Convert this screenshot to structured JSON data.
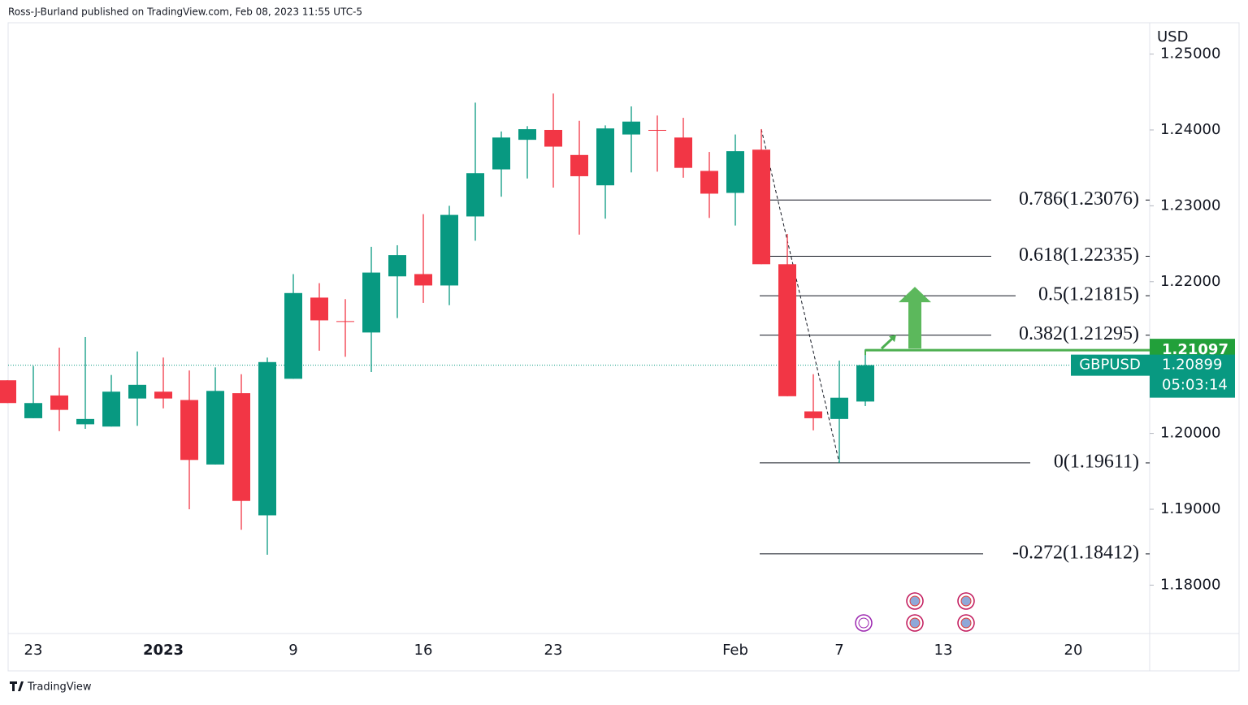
{
  "header": "Ross-J-Burland published on TradingView.com, Feb 08, 2023 11:55 UTC-5",
  "footer": "TradingView",
  "chart_data": {
    "type": "candlestick",
    "symbol": "GBPUSD",
    "currency": "USD",
    "categories": [
      null,
      "23",
      null,
      null,
      null,
      null,
      "2023",
      null,
      null,
      null,
      null,
      "9",
      null,
      null,
      null,
      null,
      "16",
      null,
      null,
      null,
      null,
      "23",
      null,
      null,
      null,
      null,
      null,
      null,
      "Feb",
      null,
      null,
      null,
      "7",
      null,
      null,
      null,
      "13",
      null,
      null,
      null,
      null,
      "20"
    ],
    "open": [
      1.207,
      1.202,
      1.205,
      1.2012,
      1.2009,
      1.2046,
      1.2055,
      1.2044,
      1.1959,
      1.2053,
      1.1892,
      1.2072,
      1.2179,
      1.2148,
      1.2133,
      1.2207,
      1.221,
      1.2195,
      1.2286,
      1.2348,
      1.2387,
      1.24,
      1.2367,
      1.2327,
      1.2394,
      1.24,
      1.239,
      1.2346,
      1.2317,
      1.2374,
      1.2223,
      1.2029,
      1.2019,
      1.2042,
      null,
      null,
      null,
      null,
      null,
      null,
      null,
      null
    ],
    "high": [
      1.207,
      1.2089,
      1.2113,
      1.2127,
      1.2077,
      1.2108,
      1.21,
      1.2083,
      1.2087,
      1.2078,
      1.21,
      1.221,
      1.2198,
      1.2177,
      1.2246,
      1.2248,
      1.2289,
      1.23,
      1.2436,
      1.2398,
      1.2405,
      1.2448,
      1.2412,
      1.2406,
      1.2431,
      1.2419,
      1.2416,
      1.2371,
      1.2394,
      1.2401,
      1.2263,
      1.2078,
      1.2096,
      1.2111,
      null,
      null,
      null,
      null,
      null,
      null,
      null,
      null
    ],
    "low": [
      1.204,
      1.202,
      1.2003,
      1.2006,
      1.2009,
      1.201,
      1.2033,
      1.19,
      1.1959,
      1.1873,
      1.184,
      1.2072,
      1.2109,
      1.2101,
      1.2081,
      1.2152,
      1.2172,
      1.2169,
      1.2254,
      1.2312,
      1.2336,
      1.2324,
      1.2262,
      1.2283,
      1.2344,
      1.2345,
      1.2337,
      1.2284,
      1.2274,
      1.2223,
      1.2049,
      1.2004,
      1.19611,
      1.2036,
      null,
      null,
      null,
      null,
      null,
      null,
      null,
      null
    ],
    "close": [
      1.204,
      1.204,
      1.2031,
      1.2019,
      1.2055,
      1.2064,
      1.2046,
      1.1965,
      1.2056,
      1.1911,
      1.2094,
      1.2185,
      1.2149,
      1.2147,
      1.2212,
      1.2235,
      1.2195,
      1.2288,
      1.2343,
      1.239,
      1.2401,
      1.2378,
      1.2339,
      1.2402,
      1.2411,
      1.2399,
      1.235,
      1.2316,
      1.2372,
      1.2223,
      1.2049,
      1.202,
      1.2047,
      1.20899,
      null,
      null,
      null,
      null,
      null,
      null,
      null,
      null
    ],
    "up_color": "#089981",
    "down_color": "#f23645",
    "ylim": [
      1.17362,
      1.25413
    ],
    "yticks": [
      {
        "value": 1.18,
        "label": "1.18000"
      },
      {
        "value": 1.19,
        "label": "1.19000"
      },
      {
        "value": 1.2,
        "label": "1.20000"
      },
      {
        "value": 1.22,
        "label": "1.22000"
      },
      {
        "value": 1.23,
        "label": "1.23000"
      },
      {
        "value": 1.24,
        "label": "1.24000"
      },
      {
        "value": 1.25,
        "label": "1.25000"
      }
    ],
    "fib_levels": [
      {
        "level": 0.786,
        "price": 1.23076,
        "label": "0.786(1.23076)"
      },
      {
        "level": 0.618,
        "price": 1.22335,
        "label": "0.618(1.22335)"
      },
      {
        "level": 0.5,
        "price": 1.21815,
        "label": "0.5(1.21815)"
      },
      {
        "level": 0.382,
        "price": 1.21295,
        "label": "0.382(1.21295)"
      },
      {
        "level": 0,
        "price": 1.19611,
        "label": "0(1.19611)"
      },
      {
        "level": -0.272,
        "price": 1.18412,
        "label": "-0.272(1.18412)"
      }
    ],
    "hline_price": 1.21097,
    "last_price": 1.20899,
    "countdown": "05:03:14"
  }
}
